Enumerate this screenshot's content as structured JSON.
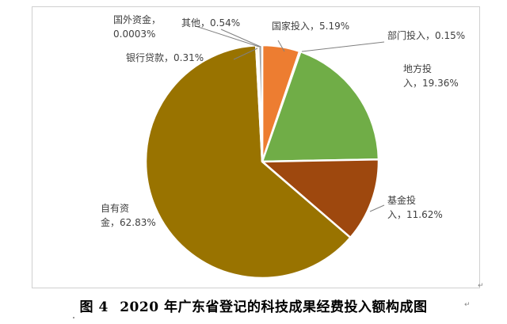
{
  "chart_data": {
    "type": "pie",
    "title": "",
    "slices": [
      {
        "name": "国家投入",
        "value": 5.19,
        "label": "国家投入，5.19%",
        "color": "#ed7d31"
      },
      {
        "name": "部门投入",
        "value": 0.15,
        "label": "部门投入，0.15%",
        "color": "#9e480e"
      },
      {
        "name": "地方投入",
        "value": 19.36,
        "label_lines": [
          "地方投",
          "入，19.36%"
        ],
        "color": "#70ad47"
      },
      {
        "name": "基金投入",
        "value": 11.62,
        "label_lines": [
          "基金投",
          "入，11.62%"
        ],
        "color": "#9e480e"
      },
      {
        "name": "自有资金",
        "value": 62.83,
        "label_lines": [
          "自有资",
          "金，62.83%"
        ],
        "color": "#997300"
      },
      {
        "name": "银行贷款",
        "value": 0.31,
        "label": "银行贷款，0.31%",
        "color": "#ffc000"
      },
      {
        "name": "国外资金",
        "value": 0.0003,
        "label_lines": [
          "国外资金，",
          "0.0003%"
        ],
        "color": "#4472c4"
      },
      {
        "name": "其他",
        "value": 0.54,
        "label": "其他，0.54%",
        "color": "#a5a5a5"
      }
    ]
  },
  "caption": {
    "prefix": "图",
    "number": "4",
    "text": "2020 年广东省登记的科技成果经费投入额构成图"
  },
  "marks": {
    "paragraph": "↵"
  }
}
